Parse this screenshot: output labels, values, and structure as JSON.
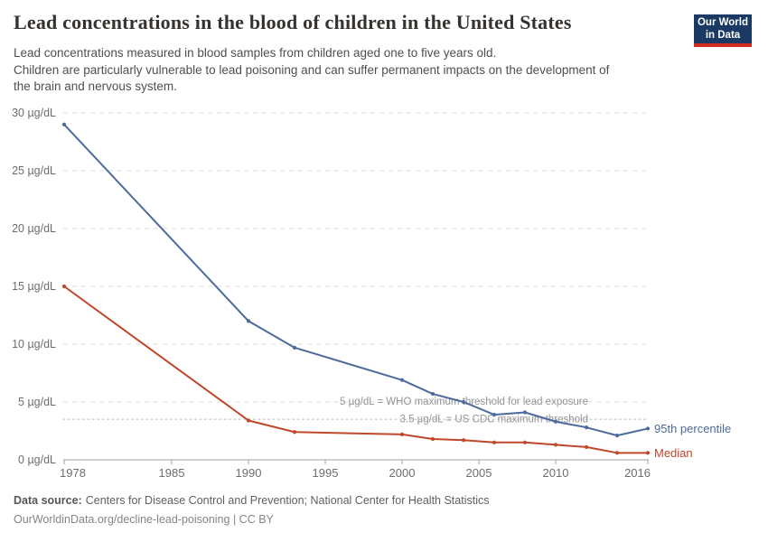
{
  "header": {
    "title": "Lead concentrations in the blood of children in the United States",
    "subtitle": "Lead concentrations measured in blood samples from children aged one to five years old.\nChildren are particularly vulnerable to lead poisoning and can suffer permanent impacts on the development of\nthe brain and nervous system.",
    "logo": {
      "line1": "Our World",
      "line2": "in Data",
      "bg_color": "#1a3a63",
      "bar_color": "#d42b21"
    }
  },
  "chart_data": {
    "type": "line",
    "title": "Lead concentrations in the blood of children in the United States",
    "unit": "µg/dL",
    "xlim": [
      1978,
      2016
    ],
    "ylim": [
      0,
      30
    ],
    "x_ticks": [
      1978,
      1985,
      1990,
      1995,
      2000,
      2005,
      2010,
      2016
    ],
    "y_ticks": [
      0,
      5,
      10,
      15,
      20,
      25,
      30
    ],
    "y_tick_suffix": " µg/dL",
    "grid": "horizontal dashed",
    "legend": "line-end labels",
    "series": [
      {
        "name": "95th percentile",
        "color": "#4c6a9c",
        "points": [
          [
            1978,
            29
          ],
          [
            1990,
            12
          ],
          [
            1993,
            9.7
          ],
          [
            2000,
            6.9
          ],
          [
            2002,
            5.7
          ],
          [
            2004,
            5
          ],
          [
            2006,
            3.9
          ],
          [
            2008,
            4.1
          ],
          [
            2010,
            3.3
          ],
          [
            2012,
            2.8
          ],
          [
            2014,
            2.1
          ],
          [
            2016,
            2.7
          ]
        ]
      },
      {
        "name": "Median",
        "color": "#c0472a",
        "points": [
          [
            1978,
            15
          ],
          [
            1990,
            3.4
          ],
          [
            1993,
            2.4
          ],
          [
            2000,
            2.2
          ],
          [
            2002,
            1.8
          ],
          [
            2004,
            1.7
          ],
          [
            2006,
            1.5
          ],
          [
            2008,
            1.5
          ],
          [
            2010,
            1.3
          ],
          [
            2012,
            1.1
          ],
          [
            2014,
            0.6
          ],
          [
            2016,
            0.6
          ]
        ]
      }
    ],
    "thresholds": [
      {
        "value": 5,
        "style": "dashed",
        "label": "5 µg/dL = WHO maximum threshold for lead exposure"
      },
      {
        "value": 3.5,
        "style": "dotted",
        "label": "3.5 µg/dL = US CDC maximum threshold"
      }
    ]
  },
  "footer": {
    "source_label": "Data source:",
    "source_text": "Centers for Disease Control and Prevention; National Center for Health Statistics",
    "attribution": "OurWorldinData.org/decline-lead-poisoning | CC BY"
  }
}
